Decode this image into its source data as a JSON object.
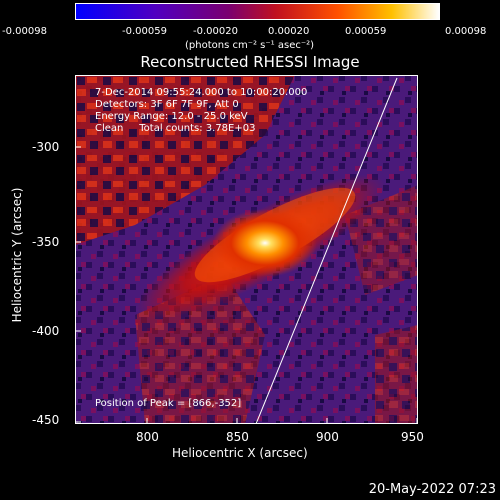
{
  "colorbar": {
    "ticks": [
      "-0.00098",
      "-0.00059",
      "-0.00020",
      "0.00020",
      "0.00059",
      "0.00098"
    ],
    "units": "(photons cm⁻² s⁻¹ asec⁻²)"
  },
  "title": "Reconstructed RHESSI Image",
  "info": {
    "time": "7-Dec-2014 09:55:24.000 to 10:00:20.000",
    "detectors": "Detectors: 3F 6F 7F 9F, Att 0",
    "energy": "Energy Range: 12.0 - 25.0 keV",
    "clean": "Clean     Total counts: 3.78E+03"
  },
  "peak": "Position of Peak = [866,-352]",
  "axes": {
    "xlabel": "Heliocentric X (arcsec)",
    "ylabel": "Heliocentric Y (arcsec)",
    "xticks": [
      "800",
      "850",
      "900",
      "950"
    ],
    "yticks": [
      "-300",
      "-350",
      "-400",
      "-450"
    ]
  },
  "footer_date": "20-May-2022 07:23",
  "colors": {
    "axis": "#ffffff",
    "background": "#000000"
  }
}
